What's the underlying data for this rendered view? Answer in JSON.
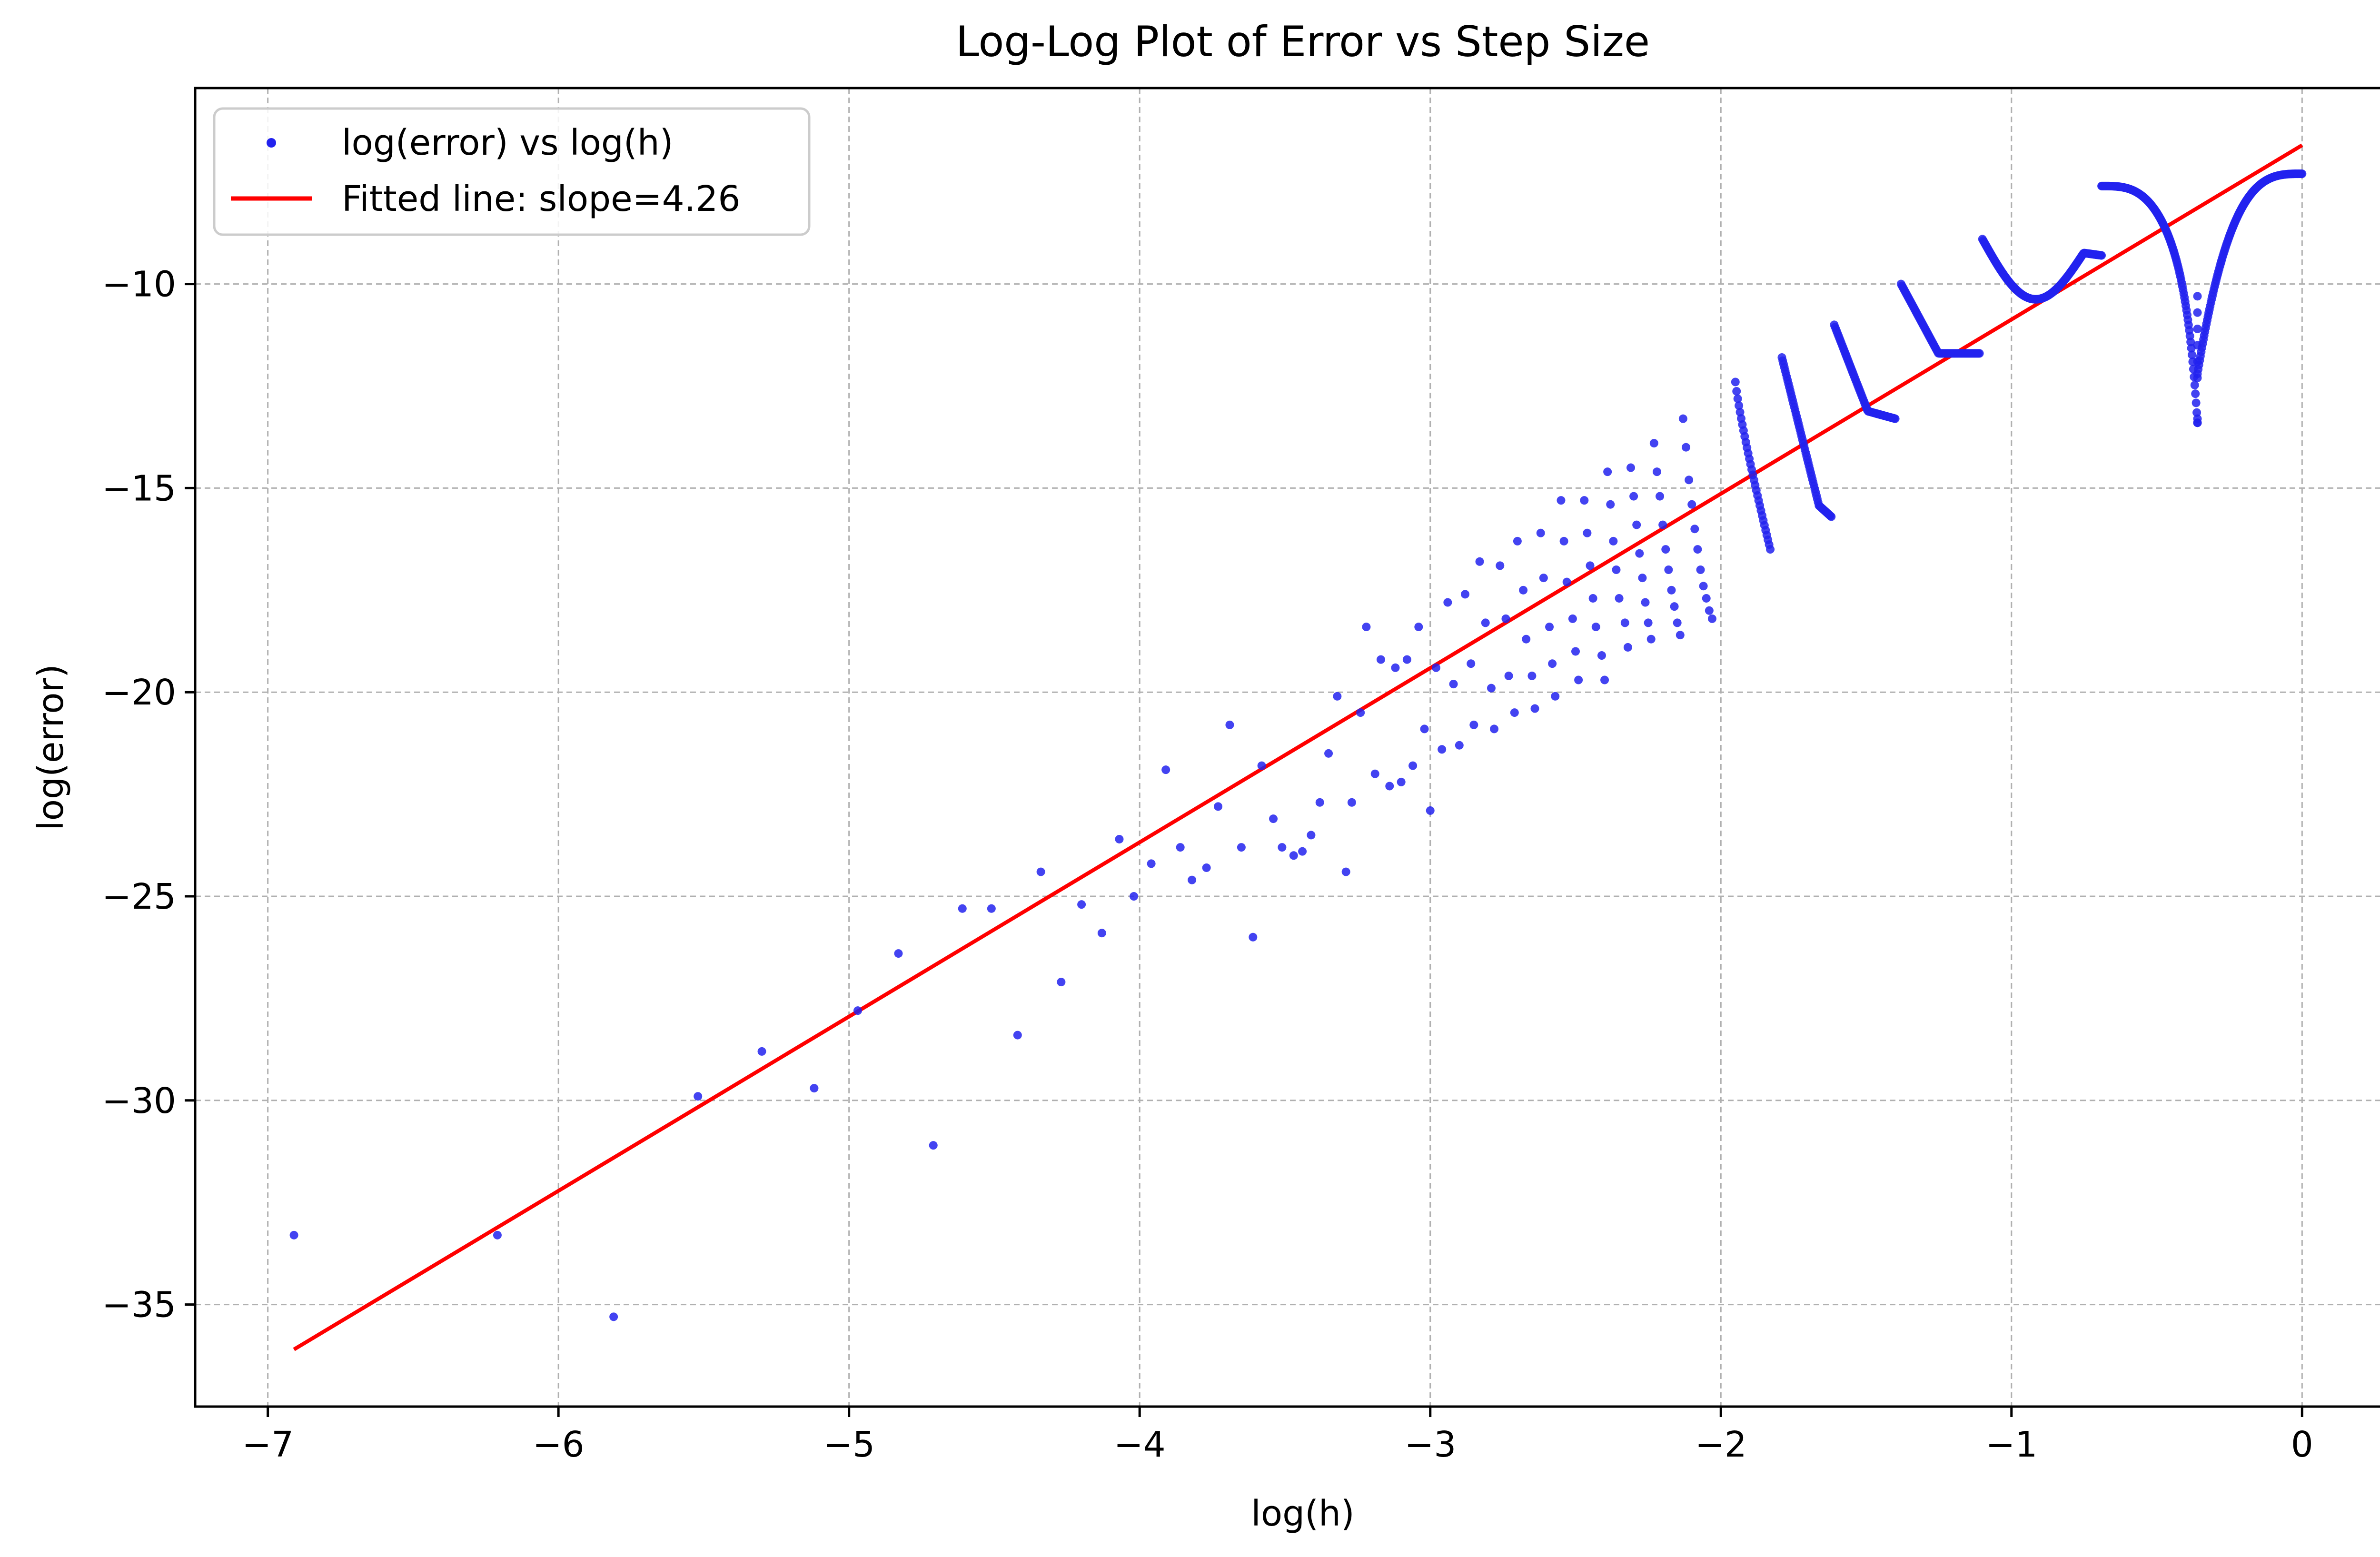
{
  "chart_data": {
    "type": "scatter",
    "title": "Log-Log Plot of Error vs Step Size",
    "xlabel": "log(h)",
    "ylabel": "log(error)",
    "xlim": [
      -7.25,
      0.35
    ],
    "ylim": [
      -37.5,
      -5.2
    ],
    "x_ticks": [
      -7,
      -6,
      -5,
      -4,
      -3,
      -2,
      -1,
      0
    ],
    "y_ticks": [
      -35,
      -30,
      -25,
      -20,
      -15,
      -10
    ],
    "x_tick_labels": [
      "−7",
      "−6",
      "−5",
      "−4",
      "−3",
      "−2",
      "−1",
      "0"
    ],
    "y_tick_labels": [
      "−35",
      "−30",
      "−25",
      "−20",
      "−15",
      "−10"
    ],
    "grid": true,
    "legend_position": "upper-left",
    "series": [
      {
        "name": "log(error) vs log(h)",
        "kind": "scatter",
        "color": "#2222ee",
        "points": [
          [
            -6.91,
            -33.3
          ],
          [
            -6.21,
            -33.3
          ],
          [
            -5.81,
            -35.3
          ],
          [
            -5.52,
            -29.9
          ],
          [
            -5.3,
            -28.8
          ],
          [
            -5.12,
            -29.7
          ],
          [
            -4.97,
            -27.8
          ],
          [
            -4.83,
            -26.4
          ],
          [
            -4.71,
            -31.1
          ],
          [
            -4.61,
            -25.3
          ],
          [
            -4.51,
            -25.3
          ],
          [
            -4.42,
            -28.4
          ],
          [
            -4.34,
            -24.4
          ],
          [
            -4.27,
            -27.1
          ],
          [
            -4.2,
            -25.2
          ],
          [
            -4.13,
            -25.9
          ],
          [
            -4.07,
            -23.6
          ],
          [
            -4.02,
            -25.0
          ],
          [
            -3.96,
            -24.2
          ],
          [
            -3.91,
            -21.9
          ],
          [
            -3.86,
            -23.8
          ],
          [
            -3.82,
            -24.6
          ],
          [
            -3.77,
            -24.3
          ],
          [
            -3.73,
            -22.8
          ],
          [
            -3.69,
            -20.8
          ],
          [
            -3.65,
            -23.8
          ],
          [
            -3.61,
            -26.0
          ],
          [
            -3.58,
            -21.8
          ],
          [
            -3.54,
            -23.1
          ],
          [
            -3.51,
            -23.8
          ],
          [
            -3.47,
            -24.0
          ],
          [
            -3.44,
            -23.9
          ],
          [
            -3.41,
            -23.5
          ],
          [
            -3.38,
            -22.7
          ],
          [
            -3.35,
            -21.5
          ],
          [
            -3.32,
            -20.1
          ],
          [
            -3.29,
            -24.4
          ],
          [
            -3.27,
            -22.7
          ],
          [
            -3.24,
            -20.5
          ],
          [
            -3.22,
            -18.4
          ],
          [
            -3.19,
            -22.0
          ],
          [
            -3.17,
            -19.2
          ],
          [
            -3.14,
            -22.3
          ],
          [
            -3.12,
            -19.4
          ],
          [
            -3.1,
            -22.2
          ],
          [
            -3.08,
            -19.2
          ],
          [
            -3.06,
            -21.8
          ],
          [
            -3.04,
            -18.4
          ],
          [
            -3.02,
            -20.9
          ],
          [
            -3.0,
            -22.9
          ],
          [
            -2.98,
            -19.4
          ],
          [
            -2.96,
            -21.4
          ],
          [
            -2.94,
            -17.8
          ],
          [
            -2.92,
            -19.8
          ],
          [
            -2.9,
            -21.3
          ],
          [
            -2.88,
            -17.6
          ],
          [
            -2.86,
            -19.3
          ],
          [
            -2.85,
            -20.8
          ],
          [
            -2.83,
            -16.8
          ],
          [
            -2.81,
            -18.3
          ],
          [
            -2.79,
            -19.9
          ],
          [
            -2.78,
            -20.9
          ],
          [
            -2.76,
            -16.9
          ],
          [
            -2.74,
            -18.2
          ],
          [
            -2.73,
            -19.6
          ],
          [
            -2.71,
            -20.5
          ],
          [
            -2.7,
            -16.3
          ],
          [
            -2.68,
            -17.5
          ],
          [
            -2.67,
            -18.7
          ],
          [
            -2.65,
            -19.6
          ],
          [
            -2.64,
            -20.4
          ],
          [
            -2.62,
            -16.1
          ],
          [
            -2.61,
            -17.2
          ],
          [
            -2.59,
            -18.4
          ],
          [
            -2.58,
            -19.3
          ],
          [
            -2.57,
            -20.1
          ],
          [
            -2.55,
            -15.3
          ],
          [
            -2.54,
            -16.3
          ],
          [
            -2.53,
            -17.3
          ],
          [
            -2.51,
            -18.2
          ],
          [
            -2.5,
            -19.0
          ],
          [
            -2.49,
            -19.7
          ],
          [
            -2.47,
            -15.3
          ],
          [
            -2.46,
            -16.1
          ],
          [
            -2.45,
            -16.9
          ],
          [
            -2.44,
            -17.7
          ],
          [
            -2.43,
            -18.4
          ],
          [
            -2.41,
            -19.1
          ],
          [
            -2.4,
            -19.7
          ],
          [
            -2.39,
            -14.6
          ],
          [
            -2.38,
            -15.4
          ],
          [
            -2.37,
            -16.3
          ],
          [
            -2.36,
            -17.0
          ],
          [
            -2.35,
            -17.7
          ],
          [
            -2.33,
            -18.3
          ],
          [
            -2.32,
            -18.9
          ],
          [
            -2.31,
            -14.5
          ],
          [
            -2.3,
            -15.2
          ],
          [
            -2.29,
            -15.9
          ],
          [
            -2.28,
            -16.6
          ],
          [
            -2.27,
            -17.2
          ],
          [
            -2.26,
            -17.8
          ],
          [
            -2.25,
            -18.3
          ],
          [
            -2.24,
            -18.7
          ],
          [
            -2.23,
            -13.9
          ],
          [
            -2.22,
            -14.6
          ],
          [
            -2.21,
            -15.2
          ],
          [
            -2.2,
            -15.9
          ],
          [
            -2.19,
            -16.5
          ],
          [
            -2.18,
            -17.0
          ],
          [
            -2.17,
            -17.5
          ],
          [
            -2.16,
            -17.9
          ],
          [
            -2.15,
            -18.3
          ],
          [
            -2.14,
            -18.6
          ],
          [
            -2.13,
            -13.3
          ],
          [
            -2.12,
            -14.0
          ],
          [
            -2.11,
            -14.8
          ],
          [
            -2.1,
            -15.4
          ],
          [
            -2.09,
            -16.0
          ],
          [
            -2.08,
            -16.5
          ],
          [
            -2.07,
            -17.0
          ],
          [
            -2.06,
            -17.4
          ],
          [
            -2.05,
            -17.7
          ],
          [
            -2.04,
            -18.0
          ],
          [
            -2.03,
            -18.2
          ]
        ],
        "clusters": [
          {
            "x_start": -1.95,
            "x_end": -1.83,
            "y_start": -12.4,
            "y_end": -16.5
          },
          {
            "x_start": -1.79,
            "x_end": -1.62,
            "y_start": -11.8,
            "y_end": -15.7
          },
          {
            "x_start": -1.61,
            "x_end": -1.4,
            "y_start": -11.0,
            "y_end": -13.3
          },
          {
            "x_start": -1.38,
            "x_end": -1.11,
            "y_start": -10.0,
            "y_end": -11.7
          },
          {
            "x_start": -1.1,
            "x_end": -0.69,
            "y_start": -8.9,
            "y_end": -9.3
          },
          {
            "x_start": -0.69,
            "x_end": -0.36,
            "y_start": -7.6,
            "y_end": -13.4
          },
          {
            "x_start": -0.36,
            "x_end": 0.0,
            "y_start": -12.2,
            "y_end": -7.3
          }
        ]
      },
      {
        "name": "Fitted line: slope=4.26",
        "kind": "line",
        "color": "#ff0000",
        "slope": 4.26,
        "x": [
          -6.91,
          0.0
        ],
        "y": [
          -36.1,
          -6.6
        ]
      }
    ]
  }
}
